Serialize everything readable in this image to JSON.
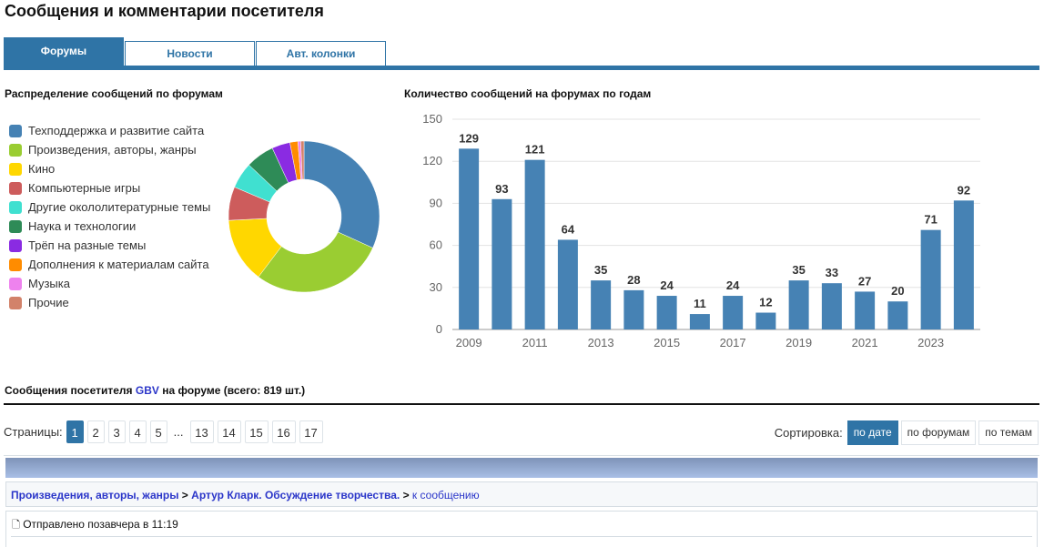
{
  "title": "Сообщения и комментарии посетителя",
  "tabs": [
    "Форумы",
    "Новости",
    "Авт. колонки"
  ],
  "pie_title": "Распределение сообщений по форумам",
  "bar_title": "Количество сообщений на форумах по годам",
  "chart_data": [
    {
      "type": "pie",
      "title": "Распределение сообщений по форумам",
      "categories": [
        "Техподдержка и развитие сайта",
        "Произведения, авторы, жанры",
        "Кино",
        "Компьютерные игры",
        "Другие окололитературные темы",
        "Наука и технологии",
        "Трёп на разные темы",
        "Дополнения к материалам сайта",
        "Музыка",
        "Прочие"
      ],
      "values": [
        31.8,
        28.5,
        13.9,
        7.2,
        5.6,
        6.1,
        3.9,
        1.7,
        0.6,
        0.7
      ],
      "colors": [
        "#4682b4",
        "#9acd32",
        "#ffd700",
        "#cd5c5c",
        "#40e0d0",
        "#2e8b57",
        "#8a2be2",
        "#ff8c00",
        "#ee82ee",
        "#d2826a"
      ]
    },
    {
      "type": "bar",
      "title": "Количество сообщений на форумах по годам",
      "categories": [
        "2009",
        "2010",
        "2011",
        "2012",
        "2013",
        "2014",
        "2015",
        "2016",
        "2017",
        "2018",
        "2019",
        "2020",
        "2021",
        "2022",
        "2023",
        "2024"
      ],
      "values": [
        129,
        93,
        121,
        64,
        35,
        28,
        24,
        11,
        24,
        12,
        35,
        33,
        27,
        20,
        71,
        92
      ],
      "xticks": [
        "2009",
        "2011",
        "2013",
        "2015",
        "2017",
        "2019",
        "2021",
        "2023"
      ],
      "yticks": [
        0,
        30,
        60,
        90,
        120,
        150
      ],
      "ylim": [
        0,
        150
      ],
      "color": "#4682b4",
      "grid": true
    }
  ],
  "user_section": {
    "prefix": "Сообщения посетителя",
    "user": "GBV",
    "suffix": "на форуме (всего: 819 шт.)"
  },
  "pagination": {
    "label": "Страницы:",
    "pages": [
      "1",
      "2",
      "3",
      "4",
      "5",
      "...",
      "13",
      "14",
      "15",
      "16",
      "17"
    ],
    "current": "1"
  },
  "sort": {
    "label": "Сортировка:",
    "options": [
      "по дате",
      "по форумам",
      "по темам"
    ],
    "active": "по дате"
  },
  "post": {
    "forum": "Произведения, авторы, жанры",
    "topic": "Артур Кларк. Обсуждение творчества.",
    "sep": ">",
    "link": "к сообщению",
    "sent": "Отправлено позавчера в 11:19"
  }
}
